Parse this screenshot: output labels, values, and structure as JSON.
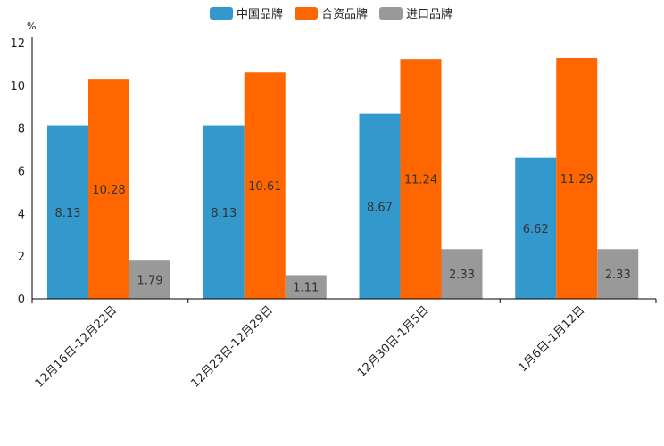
{
  "chart_data": {
    "type": "bar",
    "title": "",
    "ylabel": "%",
    "xlabel": "",
    "ylim": [
      0,
      12
    ],
    "yticks": [
      0,
      2,
      4,
      6,
      8,
      10,
      12
    ],
    "categories": [
      "12月16日-12月22日",
      "12月23日-12月29日",
      "12月30日-1月5日",
      "1月6日-1月12日"
    ],
    "series": [
      {
        "name": "中国品牌",
        "color": "#3399cc",
        "values": [
          8.13,
          8.13,
          8.67,
          6.62
        ]
      },
      {
        "name": "合资品牌",
        "color": "#ff6600",
        "values": [
          10.28,
          10.61,
          11.24,
          11.29
        ]
      },
      {
        "name": "进口品牌",
        "color": "#999999",
        "values": [
          1.79,
          1.11,
          2.33,
          2.33
        ]
      }
    ],
    "legend_position": "top-center",
    "grid": false
  }
}
